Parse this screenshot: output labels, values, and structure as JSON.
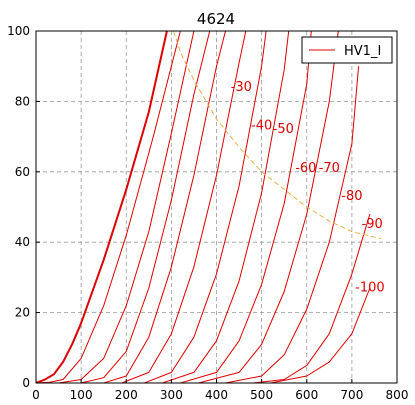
{
  "chart_data": {
    "type": "line",
    "title": "4624",
    "xlabel": "",
    "ylabel": "",
    "xlim": [
      0,
      800
    ],
    "ylim": [
      0,
      100
    ],
    "xticks": [
      0,
      100,
      200,
      300,
      400,
      500,
      600,
      700,
      800
    ],
    "yticks": [
      0,
      20,
      40,
      60,
      80,
      100
    ],
    "grid": true,
    "legend": {
      "placement": "top-right",
      "entries": [
        "HV1_I"
      ]
    },
    "colors": {
      "curves": "#dd0000",
      "max_dissipation": "#e8b04a",
      "grid": "#999999"
    },
    "series": [
      {
        "label": "",
        "bold": true,
        "x": [
          0,
          20,
          40,
          60,
          80,
          100,
          150,
          200,
          250,
          290
        ],
        "y": [
          0,
          1,
          2.5,
          6,
          11,
          17,
          35,
          55,
          77,
          100
        ]
      },
      {
        "label": "",
        "x": [
          0,
          30,
          60,
          100,
          150,
          200,
          260,
          320
        ],
        "y": [
          0,
          0.2,
          1,
          7,
          22,
          42,
          70,
          100
        ]
      },
      {
        "label": "",
        "x": [
          50,
          100,
          150,
          200,
          250,
          300,
          350
        ],
        "y": [
          0,
          1,
          7,
          22,
          43,
          71,
          100
        ]
      },
      {
        "label": "",
        "x": [
          100,
          150,
          200,
          250,
          300,
          350,
          385
        ],
        "y": [
          0,
          1.5,
          9,
          27,
          52,
          82,
          100
        ]
      },
      {
        "label": "-30",
        "x": [
          150,
          200,
          250,
          300,
          350,
          400,
          420
        ],
        "y": [
          0,
          2,
          13,
          33,
          59,
          90,
          100
        ]
      },
      {
        "label": "-40",
        "x": [
          190,
          250,
          300,
          350,
          400,
          450,
          465
        ],
        "y": [
          0,
          3,
          14,
          33,
          59,
          91,
          100
        ]
      },
      {
        "label": "-50",
        "x": [
          240,
          300,
          350,
          400,
          450,
          500,
          510
        ],
        "y": [
          0,
          3,
          13,
          31,
          56,
          90,
          100
        ]
      },
      {
        "label": "-60",
        "x": [
          280,
          350,
          400,
          450,
          500,
          550,
          560
        ],
        "y": [
          0,
          3,
          12,
          29,
          54,
          89,
          100
        ]
      },
      {
        "label": "-70",
        "x": [
          320,
          400,
          450,
          500,
          550,
          600,
          610
        ],
        "y": [
          0,
          3,
          12,
          28,
          51,
          85,
          100
        ]
      },
      {
        "label": "-80",
        "x": [
          360,
          450,
          500,
          550,
          600,
          650,
          670
        ],
        "y": [
          0,
          3,
          11,
          26,
          48,
          80,
          100
        ]
      },
      {
        "label": "-90",
        "x": [
          420,
          500,
          550,
          600,
          650,
          700,
          715
        ],
        "y": [
          0,
          2,
          8,
          21,
          40,
          68,
          90
        ]
      },
      {
        "label": "-100",
        "x": [
          480,
          550,
          600,
          650,
          700,
          740
        ],
        "y": [
          0,
          1,
          5,
          14,
          31,
          48
        ]
      },
      {
        "label": "",
        "x": [
          520,
          600,
          650,
          700,
          740
        ],
        "y": [
          0,
          2,
          6,
          14,
          27
        ]
      }
    ],
    "max_dissipation_curve": {
      "x": [
        305,
        320,
        350,
        400,
        450,
        500,
        550,
        600,
        650,
        700,
        765
      ],
      "y": [
        100,
        94,
        86,
        75,
        67,
        60,
        55,
        50,
        46,
        43,
        41
      ]
    },
    "annotations": [
      {
        "text": "-30",
        "x": 455,
        "y": 83
      },
      {
        "text": "-40",
        "x": 500,
        "y": 72
      },
      {
        "text": "-50",
        "x": 548,
        "y": 71
      },
      {
        "text": "-60",
        "x": 598,
        "y": 60
      },
      {
        "text": "-70",
        "x": 650,
        "y": 60
      },
      {
        "text": "-80",
        "x": 700,
        "y": 52
      },
      {
        "text": "-90",
        "x": 745,
        "y": 44
      },
      {
        "text": "-100",
        "x": 740,
        "y": 26
      }
    ]
  }
}
